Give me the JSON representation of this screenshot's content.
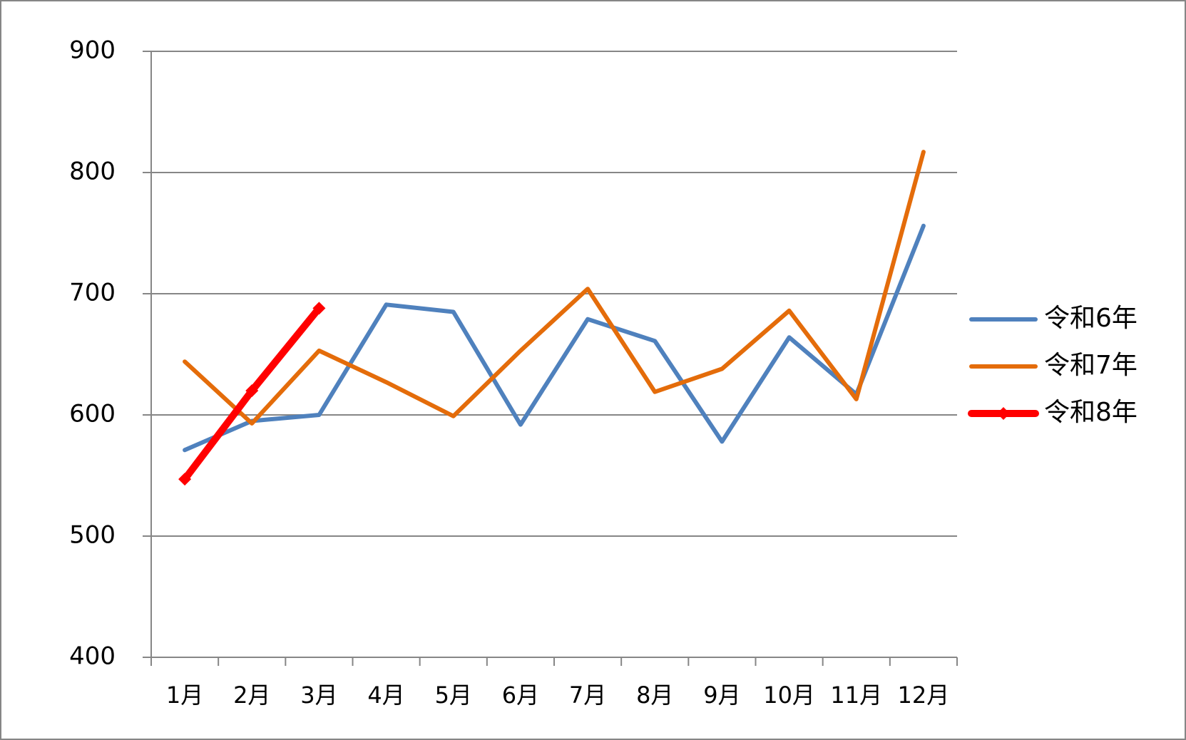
{
  "chart_data": {
    "type": "line",
    "categories": [
      "1月",
      "2月",
      "3月",
      "4月",
      "5月",
      "6月",
      "7月",
      "8月",
      "9月",
      "10月",
      "11月",
      "12月"
    ],
    "series": [
      {
        "name": "令和6年",
        "color": "#4f81bd",
        "values": [
          571,
          595,
          600,
          691,
          685,
          592,
          679,
          661,
          578,
          664,
          617,
          756
        ]
      },
      {
        "name": "令和7年",
        "color": "#e46c0a",
        "values": [
          644,
          593,
          653,
          627,
          599,
          653,
          704,
          619,
          638,
          686,
          613,
          817
        ]
      },
      {
        "name": "令和8年",
        "color": "#ff0000",
        "values": [
          547,
          620,
          688,
          null,
          null,
          null,
          null,
          null,
          null,
          null,
          null,
          null
        ],
        "marker": "diamond"
      }
    ],
    "ylim": [
      400,
      900
    ],
    "yticks": [
      400,
      500,
      600,
      700,
      800,
      900
    ],
    "grid": true,
    "legend": "right"
  }
}
